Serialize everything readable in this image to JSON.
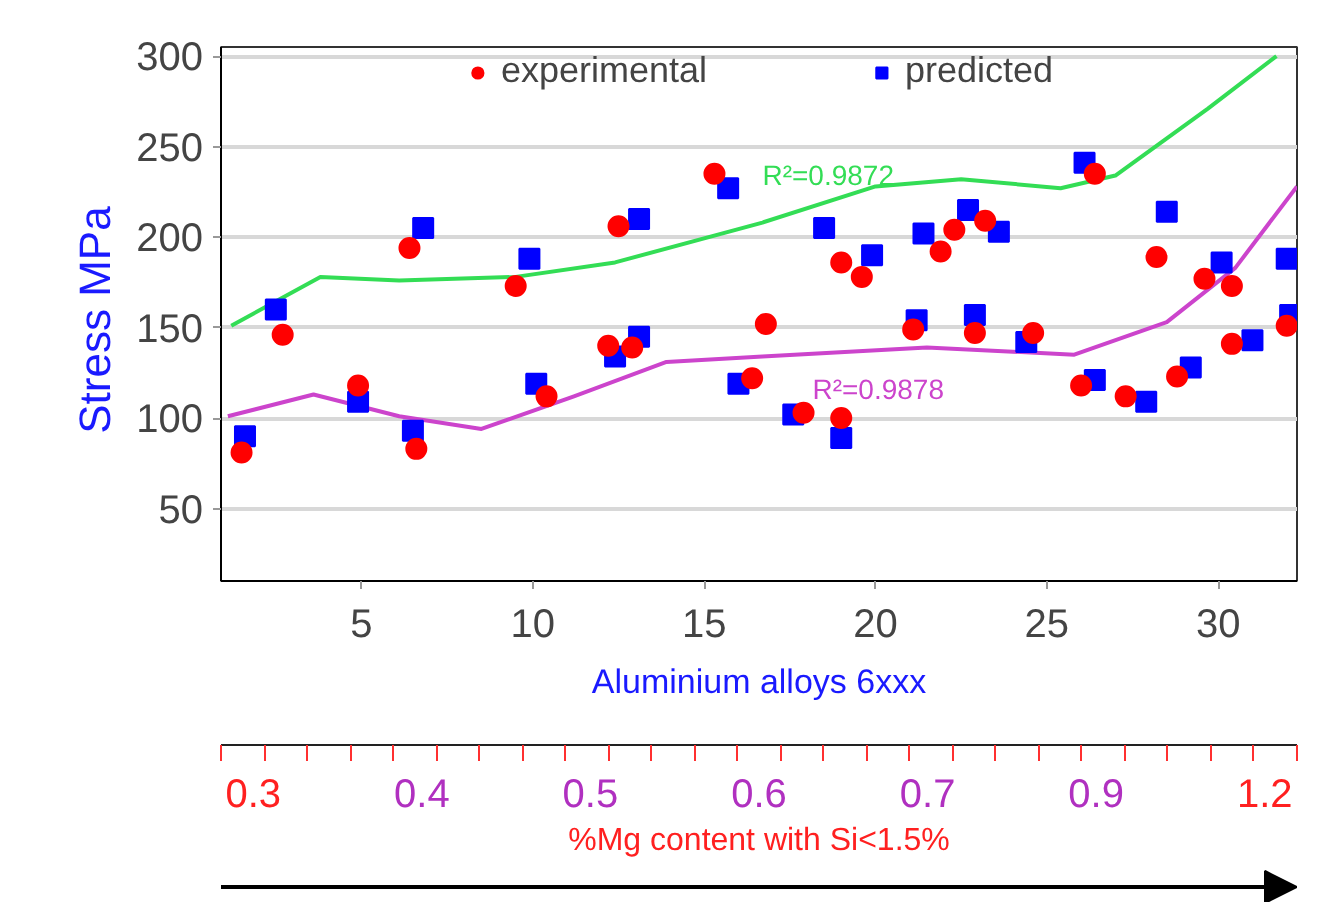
{
  "chart_data": {
    "type": "scatter",
    "xlabel": "Aluminium alloys 6xxx",
    "ylabel": "Stress  MPa",
    "xlim": [
      0.9,
      32.3
    ],
    "xticks": [
      5,
      10,
      15,
      20,
      25,
      30
    ],
    "ylim": [
      10,
      305
    ],
    "yticks": [
      50,
      100,
      150,
      200,
      250,
      300
    ],
    "grid": "y",
    "legend": "top",
    "series": [
      {
        "name": "experimental",
        "marker": "circle",
        "color": "#ff0000",
        "x": [
          1.5,
          2.7,
          4.9,
          6.4,
          6.6,
          9.5,
          10.4,
          12.2,
          12.5,
          12.9,
          15.3,
          16.4,
          16.8,
          17.9,
          19.0,
          19.0,
          19.6,
          21.1,
          21.9,
          22.3,
          22.9,
          23.2,
          24.6,
          26.0,
          26.4,
          27.3,
          28.2,
          28.8,
          29.6,
          30.4,
          30.4,
          32.0
        ],
        "values": [
          81,
          146,
          118,
          194,
          83,
          173,
          112,
          140,
          206,
          139,
          235,
          122,
          152,
          103,
          100,
          186,
          178,
          149,
          192,
          204,
          147,
          209,
          147,
          118,
          235,
          112,
          189,
          123,
          177,
          173,
          141,
          151
        ]
      },
      {
        "name": "predicted",
        "marker": "square",
        "color": "#0000ff",
        "x": [
          1.6,
          2.5,
          4.9,
          6.8,
          6.5,
          9.9,
          10.1,
          12.4,
          13.1,
          13.1,
          15.7,
          16.0,
          17.6,
          18.5,
          19.0,
          19.9,
          21.2,
          21.4,
          22.7,
          22.9,
          23.6,
          24.4,
          26.1,
          26.4,
          27.9,
          28.5,
          29.2,
          30.1,
          31.0,
          32.0,
          32.1
        ],
        "values": [
          90,
          160,
          109,
          205,
          93,
          188,
          119,
          134,
          145,
          210,
          227,
          119,
          102,
          205,
          89,
          190,
          154,
          202,
          215,
          157,
          203,
          142,
          241,
          121,
          109,
          214,
          128,
          186,
          143,
          188,
          157
        ]
      },
      {
        "type": "line",
        "color": "#33dd55",
        "x": [
          1.2,
          3.8,
          6.1,
          9.5,
          12.4,
          16.7,
          20.0,
          22.5,
          25.4,
          27.0,
          29.7,
          31.7
        ],
        "values": [
          151,
          178,
          176,
          178,
          186,
          208,
          228,
          232,
          227,
          234,
          271,
          300
        ]
      },
      {
        "type": "line",
        "color": "#cc44cc",
        "x": [
          1.1,
          3.6,
          6.1,
          8.5,
          11.2,
          13.9,
          16.7,
          21.5,
          25.8,
          28.5,
          30.5,
          32.3
        ],
        "values": [
          101,
          113,
          101,
          94,
          112,
          131,
          134,
          139,
          135,
          153,
          183,
          228
        ]
      }
    ],
    "annotations": [
      "R²=0.9872",
      "R²=0.9878",
      "0.3",
      "0.4",
      "0.5",
      "0.6",
      "0.7",
      "0.9",
      "1.2",
      "%Mg content with Si<1.5%"
    ]
  }
}
